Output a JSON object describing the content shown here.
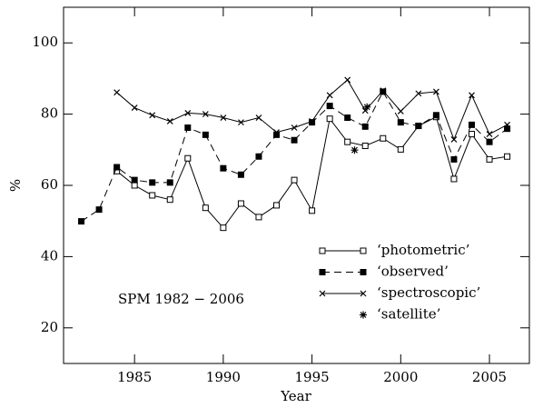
{
  "chart_data": {
    "type": "line",
    "xlabel": "Year",
    "ylabel": "%",
    "annotation": "SPM 1982 − 2006",
    "xlim": [
      1981,
      2007.25
    ],
    "ylim": [
      10,
      110
    ],
    "xticks": [
      1985,
      1990,
      1995,
      2000,
      2005
    ],
    "yticks": [
      20,
      40,
      60,
      80,
      100
    ],
    "legend": "lower right",
    "series": [
      {
        "name": "‘photometric’",
        "color": "#000000",
        "marker": "open-square",
        "line": "solid",
        "x": [
          1984,
          1985,
          1986,
          1987,
          1988,
          1989,
          1990,
          1991,
          1992,
          1993,
          1994,
          1995,
          1996,
          1997,
          1998,
          1999,
          2000,
          2001,
          2002,
          2003,
          2004,
          2005,
          2006
        ],
        "values": [
          64.0,
          60.0,
          57.2,
          56.0,
          67.6,
          53.7,
          48.1,
          54.9,
          51.1,
          54.4,
          61.5,
          52.9,
          78.7,
          72.2,
          71.1,
          73.2,
          70.1,
          76.7,
          79.2,
          61.8,
          74.4,
          67.3,
          68.1
        ]
      },
      {
        "name": "‘observed’",
        "color": "#000000",
        "marker": "filled-square",
        "line": "dashed",
        "x": [
          1982,
          1983,
          1984,
          1985,
          1986,
          1987,
          1988,
          1989,
          1990,
          1991,
          1992,
          1993,
          1994,
          1995,
          1996,
          1997,
          1998,
          1999,
          2000,
          2001,
          2002,
          2003,
          2004,
          2005,
          2006
        ],
        "values": [
          49.9,
          53.2,
          65.1,
          61.5,
          60.8,
          60.8,
          76.2,
          74.2,
          64.8,
          63.0,
          68.1,
          74.2,
          72.7,
          77.7,
          82.3,
          79.0,
          76.5,
          86.3,
          77.7,
          76.7,
          79.7,
          67.3,
          77.0,
          72.2,
          75.9
        ]
      },
      {
        "name": "‘spectroscopic’",
        "color": "#000000",
        "marker": "cross",
        "line": "solid",
        "x": [
          1984,
          1985,
          1986,
          1987,
          1988,
          1989,
          1990,
          1991,
          1992,
          1993,
          1994,
          1995,
          1996,
          1997,
          1998,
          1999,
          2000,
          2001,
          2002,
          2003,
          2004,
          2005,
          2006
        ],
        "values": [
          86.1,
          81.8,
          79.7,
          78.0,
          80.3,
          80.0,
          79.0,
          77.7,
          79.0,
          74.9,
          76.2,
          78.0,
          85.3,
          89.6,
          81.0,
          86.6,
          80.8,
          85.8,
          86.3,
          72.9,
          85.3,
          74.4,
          77.0
        ]
      },
      {
        "name": "‘satellite’",
        "color": "#000000",
        "marker": "asterisk",
        "line": "none",
        "x": [
          1997.4,
          1998.1
        ],
        "values": [
          69.9,
          82.0
        ]
      }
    ]
  }
}
